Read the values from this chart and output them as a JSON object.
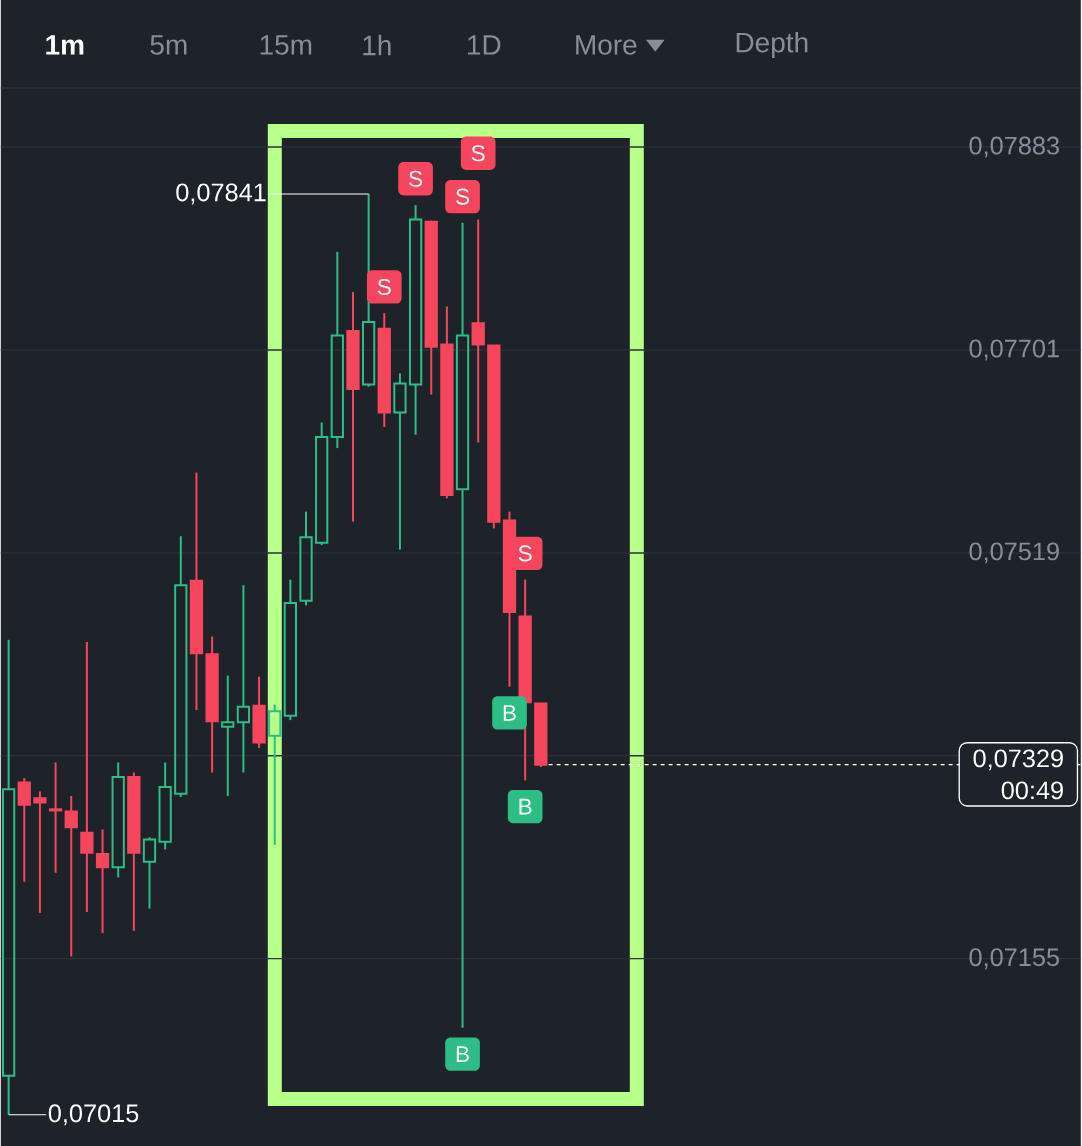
{
  "chart_data": {
    "type": "candlestick",
    "categories": [
      null,
      null,
      null,
      null,
      null,
      null,
      null,
      null,
      null,
      null,
      null,
      null,
      null,
      null,
      null,
      null,
      null,
      null,
      null,
      null,
      null,
      null,
      null,
      null,
      null,
      null,
      null,
      null,
      null,
      null,
      null,
      null,
      null,
      null,
      null,
      null,
      null,
      null,
      null,
      null,
      null,
      null,
      null,
      null,
      null,
      null,
      null,
      null,
      null,
      null,
      null,
      null,
      null,
      null,
      null,
      null,
      null,
      null,
      null,
      null,
      null,
      null,
      null,
      null,
      null,
      null,
      null,
      null,
      null
    ],
    "ohlc": [
      [
        0.0705,
        0.07441,
        0.07015,
        0.07307
      ],
      [
        0.07313,
        0.07317,
        0.07224,
        0.07293
      ],
      [
        0.07299,
        0.07305,
        0.07196,
        0.07295
      ],
      [
        0.07289,
        0.07331,
        0.07232,
        0.07288
      ],
      [
        0.07287,
        0.07301,
        0.07157,
        0.07273
      ],
      [
        0.07268,
        0.07439,
        0.07197,
        0.0725
      ],
      [
        0.07249,
        0.07271,
        0.07178,
        0.07237
      ],
      [
        0.07237,
        0.07331,
        0.07228,
        0.07318
      ],
      [
        0.07318,
        0.07322,
        0.0718,
        0.0725
      ],
      [
        0.07242,
        0.07264,
        0.072,
        0.07262
      ],
      [
        0.0726,
        0.07331,
        0.07253,
        0.07309
      ],
      [
        0.07303,
        0.07534,
        0.073,
        0.0749
      ],
      [
        0.07494,
        0.07591,
        0.07378,
        0.07429
      ],
      [
        0.07428,
        0.07444,
        0.07322,
        0.07368
      ],
      [
        0.07363,
        0.07409,
        0.07301,
        0.07367
      ],
      [
        0.07367,
        0.0749,
        0.07322,
        0.07381
      ],
      [
        0.07382,
        0.07408,
        0.07344,
        0.07349
      ],
      [
        0.07355,
        0.07383,
        0.07257,
        0.07377
      ],
      [
        0.07373,
        0.07495,
        0.07369,
        0.07474
      ],
      [
        0.07476,
        0.07556,
        0.07472,
        0.07533
      ],
      [
        0.07528,
        0.07636,
        0.07526,
        0.07623
      ],
      [
        0.07623,
        0.07789,
        0.07613,
        0.07714
      ],
      [
        0.07718,
        0.07753,
        0.07547,
        0.07666
      ],
      [
        0.0767,
        0.07841,
        0.07668,
        0.07726
      ],
      [
        0.0772,
        0.07734,
        0.07632,
        0.07645
      ],
      [
        0.07645,
        0.0768,
        0.07522,
        0.07671
      ],
      [
        0.0767,
        0.07831,
        0.07625,
        0.07818
      ],
      [
        0.07816,
        0.07817,
        0.07661,
        0.07704
      ],
      [
        0.07706,
        0.0774,
        0.07568,
        0.07571
      ],
      [
        0.07576,
        0.07815,
        0.07093,
        0.07714
      ],
      [
        0.07725,
        0.07818,
        0.07618,
        0.07706
      ],
      [
        0.07705,
        0.07705,
        0.07541,
        0.07547
      ],
      [
        0.07548,
        0.07556,
        0.07399,
        0.07466
      ],
      [
        0.07462,
        0.07495,
        0.07315,
        0.07385
      ],
      [
        0.07384,
        0.07384,
        0.07327,
        0.07329
      ],
      null,
      null,
      null,
      null,
      null,
      null,
      null,
      null,
      null,
      null,
      null,
      null,
      null,
      null,
      null,
      null,
      null,
      null,
      null,
      null,
      null,
      null,
      null,
      null,
      null,
      null,
      null,
      null,
      null,
      null,
      null,
      null,
      null,
      null
    ],
    "colors": [
      "#2ebd85",
      "#f6465d",
      "#f6465d",
      "#f6465d",
      "#f6465d",
      "#f6465d",
      "#f6465d",
      "#2ebd85",
      "#f6465d",
      "#2ebd85",
      "#2ebd85",
      "#2ebd85",
      "#f6465d",
      "#f6465d",
      "#2ebd85",
      "#2ebd85",
      "#f6465d",
      "#2ebd85",
      "#2ebd85",
      "#2ebd85",
      "#2ebd85",
      "#2ebd85",
      "#f6465d",
      "#2ebd85",
      "#f6465d",
      "#2ebd85",
      "#2ebd85",
      "#f6465d",
      "#f6465d",
      "#2ebd85",
      "#f6465d",
      "#f6465d",
      "#f6465d",
      "#f6465d",
      "#f6465d",
      null,
      null,
      null,
      null,
      null,
      null,
      null,
      null,
      null,
      null,
      null,
      null,
      null,
      null,
      null,
      null,
      null,
      null,
      null,
      null,
      null,
      null,
      null,
      null,
      null,
      null,
      null,
      null,
      null,
      null,
      null,
      null,
      null,
      null
    ],
    "ylim": [
      0.06987,
      0.07936
    ],
    "yticks": [
      {
        "value": 0.07155,
        "label": "0,07155"
      },
      {
        "value": 0.07337,
        "label": null
      },
      {
        "value": 0.07519,
        "label": "0,07519"
      },
      {
        "value": 0.07701,
        "label": "0,07701"
      },
      {
        "value": 0.07883,
        "label": "0,07883"
      }
    ],
    "grid": "y",
    "ref_lines": [
      {
        "axis": "y",
        "value": 0.07329,
        "label": "0,07329",
        "color": "#ffffff",
        "line_style": "dashed"
      }
    ],
    "annotations": [
      "1m",
      "5m",
      "15m",
      "1h",
      "1D",
      "More",
      "Depth",
      "00:49",
      "0,07841",
      "0,07015",
      "S",
      "S",
      "S",
      "S",
      "S",
      "B",
      "B",
      "B"
    ]
  }
}
